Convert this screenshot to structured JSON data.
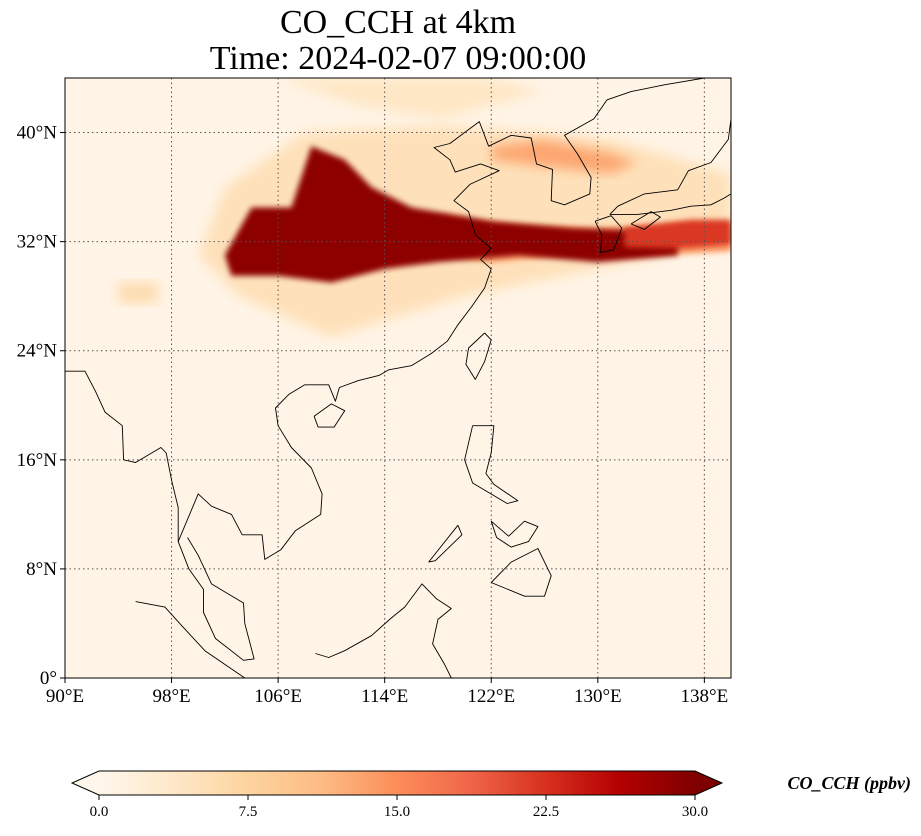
{
  "title": {
    "line1": "CO_CCH at 4km",
    "line2": "Time: 2024-02-07 09:00:00"
  },
  "map": {
    "extent": {
      "lon": [
        90,
        140
      ],
      "lat": [
        0,
        44
      ]
    },
    "lon_ticks": [
      {
        "value": 90,
        "label": "90°E"
      },
      {
        "value": 98,
        "label": "98°E"
      },
      {
        "value": 106,
        "label": "106°E"
      },
      {
        "value": 114,
        "label": "114°E"
      },
      {
        "value": 122,
        "label": "122°E"
      },
      {
        "value": 130,
        "label": "130°E"
      },
      {
        "value": 138,
        "label": "138°E"
      }
    ],
    "lat_ticks": [
      {
        "value": 0,
        "label": "0°"
      },
      {
        "value": 8,
        "label": "8°N"
      },
      {
        "value": 16,
        "label": "16°N"
      },
      {
        "value": 24,
        "label": "24°N"
      },
      {
        "value": 32,
        "label": "32°N"
      },
      {
        "value": 40,
        "label": "40°N"
      }
    ],
    "gridlines": true,
    "coastlines": true,
    "colormap": "OrRd"
  },
  "colorbar": {
    "label": "CO_CCH (ppbv)",
    "min": 0.0,
    "max": 30.0,
    "extend": "both",
    "ticks": [
      {
        "value": 0,
        "label": "0.0"
      },
      {
        "value": 7.5,
        "label": "7.5"
      },
      {
        "value": 15,
        "label": "15.0"
      },
      {
        "value": 22.5,
        "label": "22.5"
      },
      {
        "value": 30,
        "label": "30.0"
      }
    ],
    "colors": [
      "#fff7ec",
      "#fee8c8",
      "#fdd49e",
      "#fdbb84",
      "#fc8d59",
      "#ef6548",
      "#d7301f",
      "#b30000",
      "#7f0000"
    ]
  }
}
